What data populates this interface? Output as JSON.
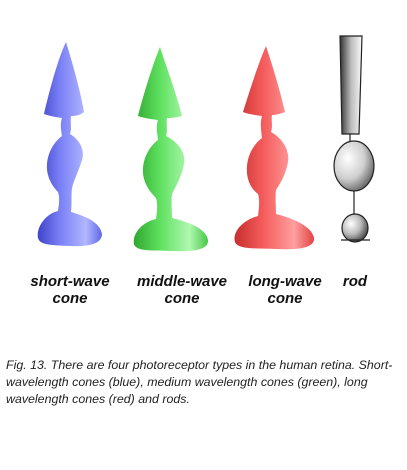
{
  "cells": [
    {
      "id": "short",
      "label_line1": "short-wave",
      "label_line2": "cone",
      "color": "#6f74f2",
      "light": "#a9b0ff",
      "dark": "#3f44c8"
    },
    {
      "id": "middle",
      "label_line1": "middle-wave",
      "label_line2": "cone",
      "color": "#55dd55",
      "light": "#a6f6a6",
      "dark": "#2fa72f"
    },
    {
      "id": "long",
      "label_line1": "long-wave",
      "label_line2": "cone",
      "color": "#f25656",
      "light": "#ff9b9b",
      "dark": "#c62f2f"
    },
    {
      "id": "rod",
      "label_line1": "rod",
      "label_line2": "",
      "color": "#bdbdbd",
      "light": "#f4f4f4",
      "dark": "#444444"
    }
  ],
  "caption": "Fig. 13. There are four photoreceptor types in the human retina. Short-wavelength cones (blue), medium wavelength cones (green), long wavelength cones (red) and rods."
}
